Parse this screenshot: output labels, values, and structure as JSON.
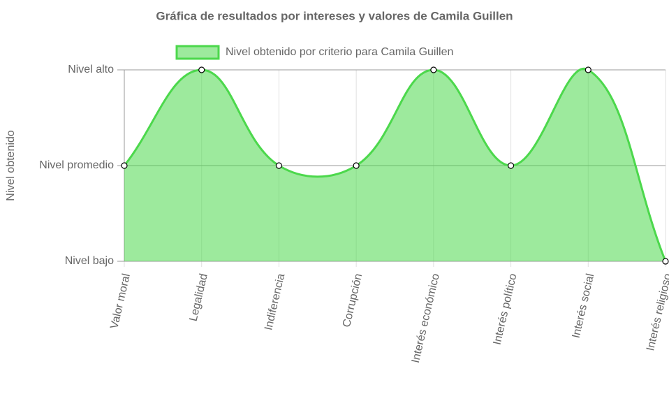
{
  "chart_data": {
    "type": "area",
    "title": "Gráfica de resultados por intereses y valores de Camila Guillen",
    "y_label": "Nivel obtenido",
    "categories": [
      "Valor moral",
      "Legalidad",
      "Indiferencia",
      "Corrupción",
      "Interés económico",
      "Interés político",
      "Interés social",
      "Interés religioso"
    ],
    "series": [
      {
        "name": "Nivel obtenido por criterio para Camila Guillen",
        "color": "#4cd84c",
        "values": [
          2,
          3,
          2,
          2,
          3,
          2,
          3,
          1
        ]
      }
    ],
    "ylim": [
      1,
      3
    ],
    "yticks": [
      {
        "value": 1,
        "label": "Nivel bajo"
      },
      {
        "value": 2,
        "label": "Nivel promedio"
      },
      {
        "value": 3,
        "label": "Nivel alto"
      }
    ],
    "grid": true
  }
}
